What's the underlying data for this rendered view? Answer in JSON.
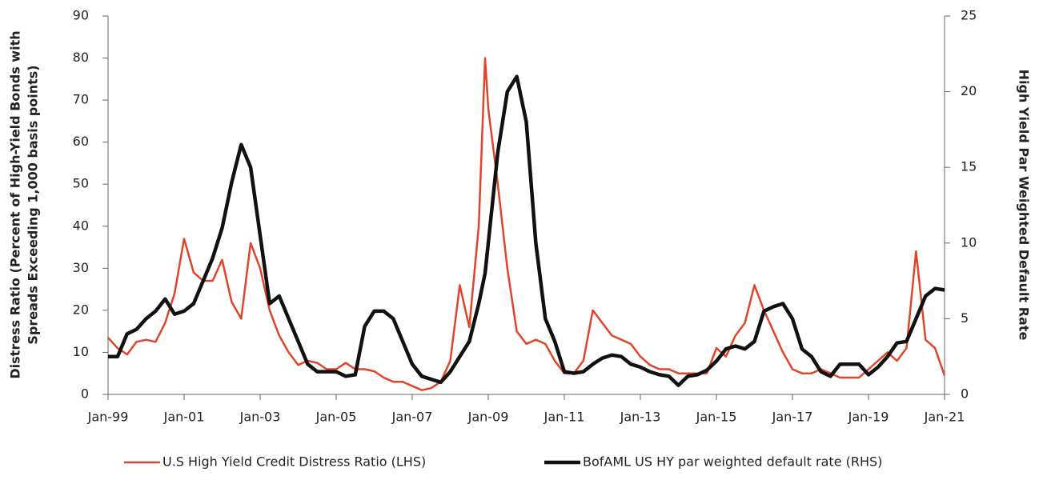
{
  "chart_data": {
    "type": "line",
    "y_label": [
      "Distress Ratio (Percent of High-Yield Bonds with",
      "Spreads Exceeding 1,000 basis points)"
    ],
    "y2_label": "High Yield Par Weighted Default Rate",
    "x": [
      "1999-01",
      "1999-04",
      "1999-07",
      "1999-10",
      "2000-01",
      "2000-04",
      "2000-07",
      "2000-10",
      "2001-01",
      "2001-04",
      "2001-07",
      "2001-10",
      "2002-01",
      "2002-04",
      "2002-07",
      "2002-10",
      "2003-01",
      "2003-04",
      "2003-07",
      "2003-10",
      "2004-01",
      "2004-04",
      "2004-07",
      "2004-10",
      "2005-01",
      "2005-04",
      "2005-07",
      "2005-10",
      "2006-01",
      "2006-04",
      "2006-07",
      "2006-10",
      "2007-01",
      "2007-04",
      "2007-07",
      "2007-10",
      "2008-01",
      "2008-04",
      "2008-07",
      "2008-10",
      "2008-12",
      "2009-01",
      "2009-04",
      "2009-07",
      "2009-10",
      "2010-01",
      "2010-04",
      "2010-07",
      "2010-10",
      "2011-01",
      "2011-04",
      "2011-07",
      "2011-10",
      "2012-01",
      "2012-04",
      "2012-07",
      "2012-10",
      "2013-01",
      "2013-04",
      "2013-07",
      "2013-10",
      "2014-01",
      "2014-04",
      "2014-07",
      "2014-10",
      "2015-01",
      "2015-04",
      "2015-07",
      "2015-10",
      "2016-01",
      "2016-04",
      "2016-07",
      "2016-10",
      "2017-01",
      "2017-04",
      "2017-07",
      "2017-10",
      "2018-01",
      "2018-04",
      "2018-07",
      "2018-10",
      "2019-01",
      "2019-04",
      "2019-07",
      "2019-10",
      "2020-01",
      "2020-04",
      "2020-07",
      "2020-10",
      "2021-01"
    ],
    "series": [
      {
        "name": "U.S High Yield Credit Distress Ratio (LHS)",
        "color": "#e0442a",
        "width": 2.5,
        "values": [
          13.5,
          11,
          9.5,
          12.5,
          13,
          12.5,
          17,
          24,
          37,
          29,
          27,
          27,
          32,
          22,
          18,
          36,
          30,
          20,
          14,
          10,
          7,
          8,
          7.5,
          6,
          6,
          7.5,
          6,
          6,
          5.5,
          4,
          3,
          3,
          2,
          1,
          1.5,
          3,
          8,
          26,
          16,
          40,
          80,
          68,
          50,
          30,
          15,
          12,
          13,
          12,
          8,
          5,
          5,
          8,
          20,
          17,
          14,
          13,
          12,
          9,
          7,
          6,
          6,
          5,
          5,
          5,
          5,
          11,
          9,
          14,
          17,
          26,
          20,
          15,
          10,
          6,
          5,
          5,
          6,
          5,
          4,
          4,
          4,
          6,
          8,
          10,
          8,
          11,
          34,
          13,
          11,
          4.5
        ]
      },
      {
        "name": "BofAML US HY par weighted default rate (RHS)",
        "color": "#111111",
        "width": 4.5,
        "axis": "y2",
        "values": [
          2.5,
          2.5,
          4,
          4.3,
          5,
          5.5,
          6.3,
          5.3,
          5.5,
          6,
          7.5,
          9,
          11,
          14,
          16.5,
          15,
          10.5,
          6,
          6.5,
          5,
          3.5,
          2,
          1.5,
          1.5,
          1.5,
          1.2,
          1.3,
          4.5,
          5.5,
          5.5,
          5,
          3.5,
          2,
          1.2,
          1,
          0.8,
          1.5,
          2.5,
          3.5,
          6,
          8,
          10,
          16,
          20,
          21,
          18,
          10,
          5,
          3.5,
          1.5,
          1.4,
          1.5,
          2,
          2.4,
          2.6,
          2.5,
          2,
          1.8,
          1.5,
          1.3,
          1.2,
          0.6,
          1.2,
          1.3,
          1.6,
          2.2,
          3,
          3.2,
          3,
          3.5,
          5.5,
          5.8,
          6,
          5,
          3,
          2.5,
          1.5,
          1.2,
          2,
          2,
          2,
          1.3,
          1.8,
          2.5,
          3.4,
          3.5,
          5,
          6.5,
          7,
          6.9
        ]
      }
    ],
    "xlim": [
      "1999-01",
      "2021-01"
    ],
    "xticks": [
      {
        "value": "1999-01",
        "label": "Jan-99"
      },
      {
        "value": "2001-01",
        "label": "Jan-01"
      },
      {
        "value": "2003-01",
        "label": "Jan-03"
      },
      {
        "value": "2005-01",
        "label": "Jan-05"
      },
      {
        "value": "2007-01",
        "label": "Jan-07"
      },
      {
        "value": "2009-01",
        "label": "Jan-09"
      },
      {
        "value": "2011-01",
        "label": "Jan-11"
      },
      {
        "value": "2013-01",
        "label": "Jan-13"
      },
      {
        "value": "2015-01",
        "label": "Jan-15"
      },
      {
        "value": "2017-01",
        "label": "Jan-17"
      },
      {
        "value": "2019-01",
        "label": "Jan-19"
      },
      {
        "value": "2021-01",
        "label": "Jan-21"
      }
    ],
    "ylim": [
      0,
      90
    ],
    "yticks": [
      0,
      10,
      20,
      30,
      40,
      50,
      60,
      70,
      80,
      90
    ],
    "y2lim": [
      0,
      25
    ],
    "y2ticks": [
      0,
      5,
      10,
      15,
      20,
      25
    ],
    "legend": "bottom"
  }
}
